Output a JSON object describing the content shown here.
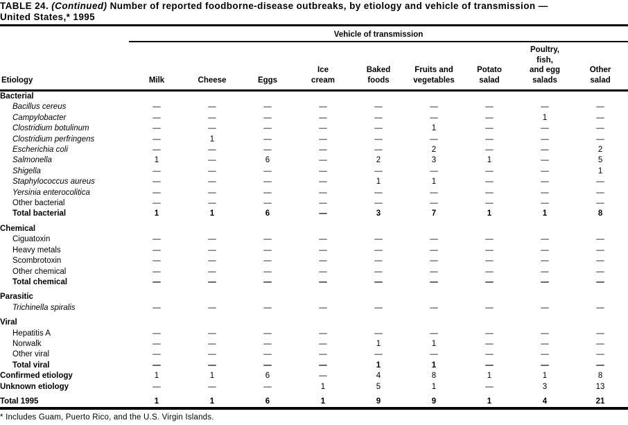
{
  "title": {
    "table_label": "TABLE 24.",
    "continued": "(Continued)",
    "line1_rest": "Number of reported foodborne-disease outbreaks, by etiology and vehicle of transmission —",
    "line2": "United States,* 1995"
  },
  "table": {
    "vehicle_header": "Vehicle of transmission",
    "etiology_header": "Etiology",
    "columns": [
      [
        "Milk"
      ],
      [
        "Cheese"
      ],
      [
        "Eggs"
      ],
      [
        "Ice",
        "cream"
      ],
      [
        "Baked",
        "foods"
      ],
      [
        "Fruits and",
        "vegetables"
      ],
      [
        "Potato",
        "salad"
      ],
      [
        "Poultry,",
        "fish,",
        "and egg",
        "salads"
      ],
      [
        "Other",
        "salad"
      ]
    ],
    "rows": [
      {
        "label": "Bacterial",
        "section": true
      },
      {
        "label": "Bacillus cereus",
        "italic": true,
        "indent": true,
        "values": [
          "—",
          "—",
          "—",
          "—",
          "—",
          "—",
          "—",
          "—",
          "—"
        ]
      },
      {
        "label": "Campylobacter",
        "italic": true,
        "indent": true,
        "values": [
          "—",
          "—",
          "—",
          "—",
          "—",
          "—",
          "—",
          "1",
          "—"
        ]
      },
      {
        "label": "Clostridium botulinum",
        "italic": true,
        "indent": true,
        "values": [
          "—",
          "—",
          "—",
          "—",
          "—",
          "1",
          "—",
          "—",
          "—"
        ]
      },
      {
        "label": "Clostridium perfringens",
        "italic": true,
        "indent": true,
        "values": [
          "—",
          "1",
          "—",
          "—",
          "—",
          "—",
          "—",
          "—",
          "—"
        ]
      },
      {
        "label": "Escherichia coli",
        "italic": true,
        "indent": true,
        "values": [
          "—",
          "—",
          "—",
          "—",
          "—",
          "2",
          "—",
          "—",
          "2"
        ]
      },
      {
        "label": "Salmonella",
        "italic": true,
        "indent": true,
        "values": [
          "1",
          "—",
          "6",
          "—",
          "2",
          "3",
          "1",
          "—",
          "5"
        ]
      },
      {
        "label": "Shigella",
        "italic": true,
        "indent": true,
        "values": [
          "—",
          "—",
          "—",
          "—",
          "—",
          "—",
          "—",
          "—",
          "1"
        ]
      },
      {
        "label": "Staphylococcus aureus",
        "italic": true,
        "indent": true,
        "values": [
          "—",
          "—",
          "—",
          "—",
          "1",
          "1",
          "—",
          "—",
          "—"
        ]
      },
      {
        "label": "Yersinia enterocolitica",
        "italic": true,
        "indent": true,
        "values": [
          "—",
          "—",
          "—",
          "—",
          "—",
          "—",
          "—",
          "—",
          "—"
        ]
      },
      {
        "label": "Other bacterial",
        "indent": true,
        "values": [
          "—",
          "—",
          "—",
          "—",
          "—",
          "—",
          "—",
          "—",
          "—"
        ]
      },
      {
        "label": "Total bacterial",
        "indent": true,
        "bold": true,
        "bold_values": true,
        "values": [
          "1",
          "1",
          "6",
          "—",
          "3",
          "7",
          "1",
          "1",
          "8"
        ]
      },
      {
        "label": "Chemical",
        "section": true,
        "gap": true
      },
      {
        "label": "Ciguatoxin",
        "indent": true,
        "values": [
          "—",
          "—",
          "—",
          "—",
          "—",
          "—",
          "—",
          "—",
          "—"
        ]
      },
      {
        "label": "Heavy metals",
        "indent": true,
        "values": [
          "—",
          "—",
          "—",
          "—",
          "—",
          "—",
          "—",
          "—",
          "—"
        ]
      },
      {
        "label": "Scombrotoxin",
        "indent": true,
        "values": [
          "—",
          "—",
          "—",
          "—",
          "—",
          "—",
          "—",
          "—",
          "—"
        ]
      },
      {
        "label": "Other chemical",
        "indent": true,
        "values": [
          "—",
          "—",
          "—",
          "—",
          "—",
          "—",
          "—",
          "—",
          "—"
        ]
      },
      {
        "label": "Total chemical",
        "indent": true,
        "bold": true,
        "bold_values": true,
        "values": [
          "—",
          "—",
          "—",
          "—",
          "—",
          "—",
          "—",
          "—",
          "—"
        ]
      },
      {
        "label": "Parasitic",
        "section": true,
        "gap": true
      },
      {
        "label": "Trichinella spiralis",
        "italic": true,
        "indent": true,
        "values": [
          "—",
          "—",
          "—",
          "—",
          "—",
          "—",
          "—",
          "—",
          "—"
        ]
      },
      {
        "label": "Viral",
        "section": true,
        "gap": true
      },
      {
        "label": "Hepatitis A",
        "indent": true,
        "values": [
          "—",
          "—",
          "—",
          "—",
          "—",
          "—",
          "—",
          "—",
          "—"
        ]
      },
      {
        "label": "Norwalk",
        "indent": true,
        "values": [
          "—",
          "—",
          "—",
          "—",
          "1",
          "1",
          "—",
          "—",
          "—"
        ]
      },
      {
        "label": "Other viral",
        "indent": true,
        "values": [
          "—",
          "—",
          "—",
          "—",
          "—",
          "—",
          "—",
          "—",
          "—"
        ]
      },
      {
        "label": "Total viral",
        "indent": true,
        "bold": true,
        "bold_values": true,
        "values": [
          "—",
          "—",
          "—",
          "—",
          "1",
          "1",
          "—",
          "—",
          "—"
        ]
      },
      {
        "label": "Confirmed etiology",
        "bold": true,
        "values": [
          "1",
          "1",
          "6",
          "—",
          "4",
          "8",
          "1",
          "1",
          "8"
        ]
      },
      {
        "label": "Unknown etiology",
        "bold": true,
        "values": [
          "—",
          "—",
          "—",
          "1",
          "5",
          "1",
          "—",
          "3",
          "13"
        ]
      },
      {
        "label": "Total 1995",
        "bold": true,
        "bold_values": true,
        "gap": true,
        "values": [
          "1",
          "1",
          "6",
          "1",
          "9",
          "9",
          "1",
          "4",
          "21"
        ]
      }
    ]
  },
  "footnote": "* Includes Guam, Puerto Rico, and the U.S. Virgin Islands."
}
